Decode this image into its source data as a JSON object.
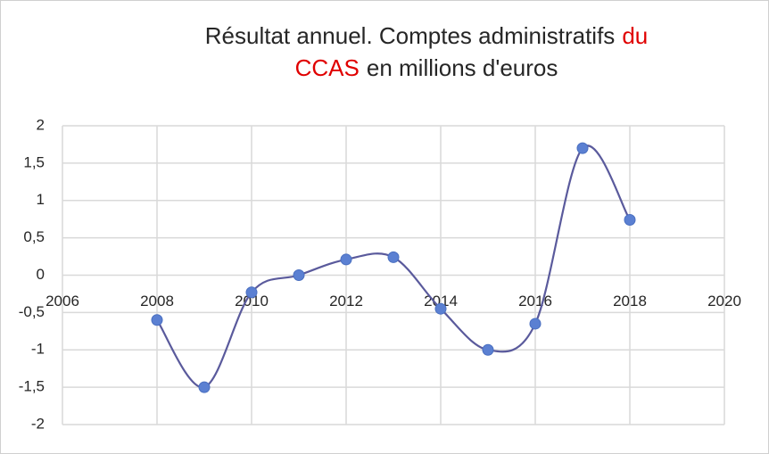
{
  "chart_data": {
    "type": "scatter-smooth",
    "title": [
      [
        {
          "text": "Résultat annuel. Comptes administratifs",
          "color": "#262626"
        },
        {
          "text": "du",
          "color": "#e00000"
        }
      ],
      [
        {
          "text": "CCAS",
          "color": "#e00000"
        },
        {
          "text": "en millions d'euros",
          "color": "#262626"
        }
      ]
    ],
    "x": [
      2008,
      2009,
      2010,
      2011,
      2012,
      2013,
      2014,
      2015,
      2016,
      2017,
      2018
    ],
    "series": [
      {
        "color": "#5a5a9c",
        "marker_color": "#5b80d2",
        "values": [
          -0.6,
          -1.5,
          -0.23,
          0.0,
          0.21,
          0.24,
          -0.45,
          -1.0,
          -0.65,
          1.7,
          0.74
        ]
      }
    ],
    "xlim": [
      2006,
      2020
    ],
    "xticks": [
      2006,
      2008,
      2010,
      2012,
      2014,
      2016,
      2018,
      2020
    ],
    "ylim": [
      -2,
      2
    ],
    "yticks": [
      -2,
      {
        "value": -1.5,
        "label": "-1,5"
      },
      -1,
      {
        "value": -0.5,
        "label": "-0,5"
      },
      0,
      {
        "value": 0.5,
        "label": "0,5"
      },
      1,
      {
        "value": 1.5,
        "label": "1,5"
      },
      2
    ],
    "grid": true
  }
}
